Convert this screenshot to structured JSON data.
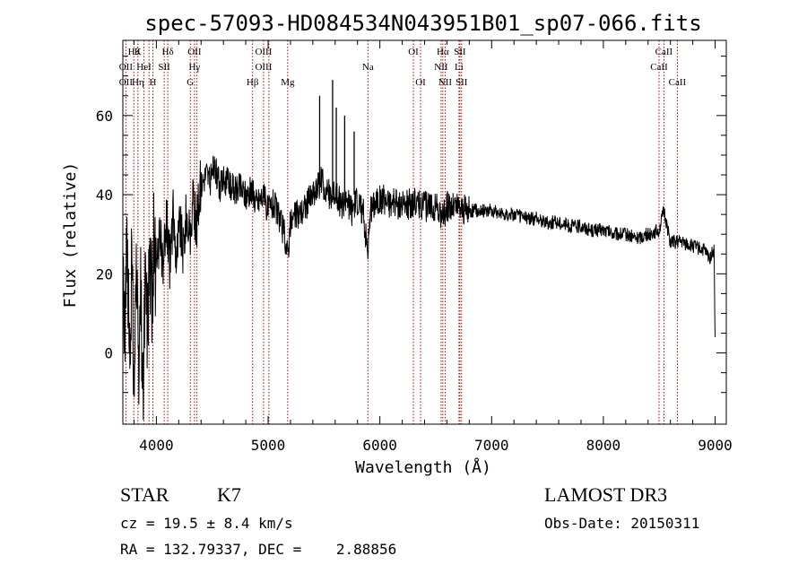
{
  "chart_data": {
    "type": "line",
    "title": "spec-57093-HD084534N043951B01_sp07-066.fits",
    "xlabel": "Wavelength (Å)",
    "ylabel": "Flux (relative)",
    "xlim": [
      3700,
      9100
    ],
    "ylim": [
      -18,
      79
    ],
    "x_ticks": [
      4000,
      5000,
      6000,
      7000,
      8000,
      9000
    ],
    "y_ticks": [
      0,
      20,
      40,
      60
    ],
    "grid": false,
    "series": [
      {
        "name": "flux",
        "x": [
          3700,
          3720,
          3740,
          3760,
          3780,
          3800,
          3820,
          3840,
          3860,
          3880,
          3900,
          3920,
          3940,
          3960,
          3980,
          4000,
          4030,
          4060,
          4090,
          4120,
          4150,
          4180,
          4210,
          4240,
          4270,
          4300,
          4330,
          4360,
          4390,
          4420,
          4450,
          4480,
          4510,
          4540,
          4570,
          4600,
          4650,
          4700,
          4750,
          4800,
          4850,
          4900,
          4950,
          5000,
          5050,
          5100,
          5150,
          5175,
          5200,
          5250,
          5300,
          5350,
          5400,
          5450,
          5480,
          5500,
          5520,
          5550,
          5580,
          5610,
          5640,
          5670,
          5700,
          5750,
          5800,
          5850,
          5890,
          5920,
          5950,
          6000,
          6100,
          6200,
          6300,
          6400,
          6500,
          6563,
          6600,
          6700,
          6800,
          6900,
          7000,
          7100,
          7200,
          7300,
          7400,
          7500,
          7600,
          7700,
          7800,
          7900,
          8000,
          8100,
          8200,
          8300,
          8400,
          8500,
          8542,
          8600,
          8700,
          8800,
          8900,
          8950,
          8990,
          9000
        ],
        "values": [
          25,
          5,
          28,
          -5,
          22,
          -8,
          20,
          -10,
          15,
          -12,
          18,
          8,
          26,
          12,
          30,
          18,
          32,
          20,
          34,
          22,
          35,
          24,
          33,
          26,
          36,
          28,
          38,
          32,
          42,
          44,
          46,
          43,
          47,
          45,
          42,
          44,
          43,
          41,
          42,
          40,
          41,
          38,
          40,
          36,
          38,
          34,
          30,
          25,
          33,
          35,
          36,
          38,
          40,
          42,
          44,
          41,
          42,
          40,
          39,
          41,
          38,
          37,
          39,
          36,
          38,
          36,
          26,
          36,
          38,
          39,
          38,
          37,
          38,
          37,
          37,
          34,
          37,
          37,
          36,
          36,
          36,
          35,
          35,
          34,
          34,
          33,
          33,
          32,
          32,
          31,
          31,
          30,
          30,
          29,
          30,
          31,
          36,
          28,
          28,
          27,
          26,
          24,
          26,
          4
        ]
      },
      {
        "name": "emission spikes",
        "x": [
          5461,
          5577,
          5610,
          5685,
          5770
        ],
        "values": [
          65,
          69,
          62,
          60,
          56
        ]
      }
    ],
    "line_labels": [
      {
        "rows": [
          "Hθ",
          "OII",
          "OII"
        ],
        "x": [
          3798,
          3727,
          3727
        ]
      },
      {
        "rows": [
          "K",
          "HeI",
          "Hη"
        ],
        "x": [
          3834,
          3889,
          3835
        ]
      },
      {
        "rows": [
          "",
          "SII",
          "H"
        ],
        "x": [
          3968,
          4070,
          3969
        ]
      },
      {
        "rows": [
          "Hδ",
          "",
          ""
        ],
        "x": [
          4102,
          0,
          0
        ]
      },
      {
        "rows": [
          "OII",
          "Hγ",
          "G"
        ],
        "x": [
          4341,
          4341,
          4304
        ]
      },
      {
        "rows": [
          "OIII",
          "OIII",
          ""
        ],
        "x": [
          4959,
          4959,
          0
        ]
      },
      {
        "rows": [
          "",
          "",
          "Hβ"
        ],
        "x": [
          0,
          0,
          4861
        ]
      },
      {
        "rows": [
          "",
          "",
          "Mg"
        ],
        "x": [
          0,
          0,
          5175
        ]
      },
      {
        "rows": [
          "",
          "Na",
          ""
        ],
        "x": [
          0,
          5893,
          0
        ]
      },
      {
        "rows": [
          "OI",
          "",
          "OI"
        ],
        "x": [
          6300,
          0,
          6364
        ]
      },
      {
        "rows": [
          "Hα",
          "NII",
          "NII"
        ],
        "x": [
          6563,
          6548,
          6584
        ]
      },
      {
        "rows": [
          "SII",
          "Li",
          "SII"
        ],
        "x": [
          6716,
          6708,
          6731
        ]
      },
      {
        "rows": [
          "CaII",
          "CaII",
          "CaII"
        ],
        "x": [
          8542,
          8498,
          8662
        ]
      }
    ],
    "line_markers": [
      3727,
      3798,
      3835,
      3889,
      3934,
      3969,
      4070,
      4102,
      4304,
      4341,
      4363,
      4861,
      4959,
      5007,
      5175,
      5893,
      6300,
      6364,
      6548,
      6563,
      6584,
      6708,
      6716,
      6731,
      8498,
      8542,
      8662
    ]
  },
  "info": {
    "object_type": "STAR",
    "subclass": "K7",
    "survey": "LAMOST DR3",
    "cz": "cz = 19.5 ± 8.4 km/s",
    "obs_date": "Obs-Date: 20150311",
    "coords": "RA = 132.79337, DEC =    2.88856"
  }
}
